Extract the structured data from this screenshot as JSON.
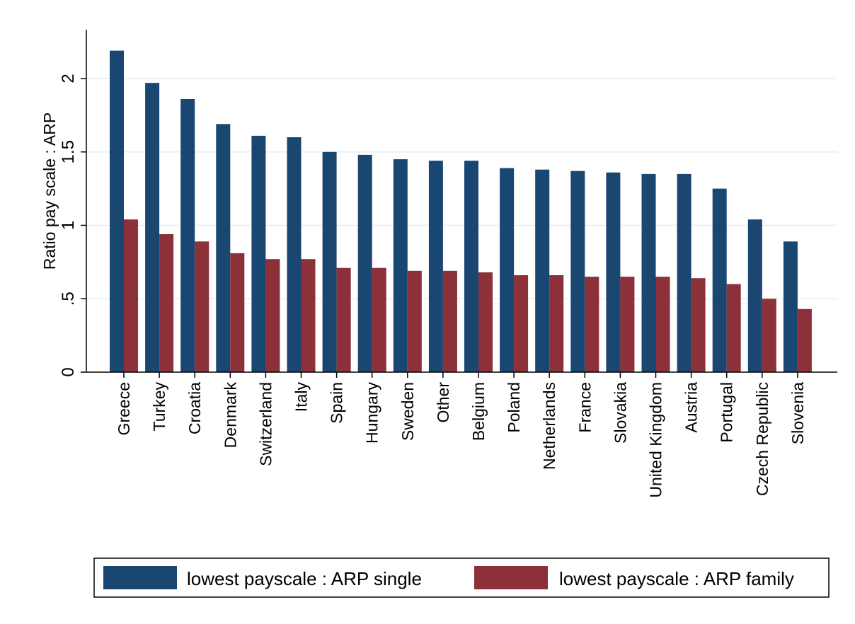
{
  "colors": {
    "single": "#1a4672",
    "family": "#8c3039",
    "grid": "#e4eef1",
    "axis": "#000000",
    "background": "#ffffff"
  },
  "chart_data": {
    "type": "bar",
    "title": "",
    "xlabel": "",
    "ylabel": "Ratio pay scale : ARP",
    "ylim": [
      0,
      2.3
    ],
    "yticks": [
      0,
      0.5,
      1,
      1.5,
      2
    ],
    "ytick_labels": [
      "0",
      ".5",
      "1",
      "1.5",
      "2"
    ],
    "grid": true,
    "legend_position": "bottom",
    "categories": [
      "Greece",
      "Turkey",
      "Croatia",
      "Denmark",
      "Switzerland",
      "Italy",
      "Spain",
      "Hungary",
      "Sweden",
      "Other",
      "Belgium",
      "Poland",
      "Netherlands",
      "France",
      "Slovakia",
      "United Kingdom",
      "Austria",
      "Portugal",
      "Czech Republic",
      "Slovenia"
    ],
    "series": [
      {
        "name": "lowest payscale : ARP single",
        "values": [
          2.19,
          1.97,
          1.86,
          1.69,
          1.61,
          1.6,
          1.5,
          1.48,
          1.45,
          1.44,
          1.44,
          1.39,
          1.38,
          1.37,
          1.36,
          1.35,
          1.35,
          1.25,
          1.04,
          0.89
        ]
      },
      {
        "name": "lowest payscale : ARP family",
        "values": [
          1.04,
          0.94,
          0.89,
          0.81,
          0.77,
          0.77,
          0.71,
          0.71,
          0.69,
          0.69,
          0.68,
          0.66,
          0.66,
          0.65,
          0.65,
          0.65,
          0.64,
          0.6,
          0.5,
          0.43
        ]
      }
    ]
  }
}
